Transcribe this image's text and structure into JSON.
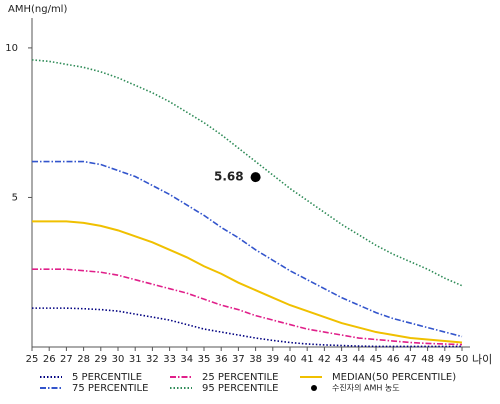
{
  "chart_data": {
    "type": "line",
    "y_label": "AMH(ng/ml)",
    "x_label": "나이",
    "x": [
      25,
      26,
      27,
      28,
      29,
      30,
      31,
      32,
      33,
      34,
      35,
      36,
      37,
      38,
      39,
      40,
      41,
      42,
      43,
      44,
      45,
      46,
      47,
      48,
      49,
      50
    ],
    "xlim": [
      25,
      50
    ],
    "xticks": [
      25,
      26,
      27,
      28,
      29,
      30,
      31,
      32,
      33,
      34,
      35,
      36,
      37,
      38,
      39,
      40,
      41,
      42,
      43,
      44,
      45,
      46,
      47,
      48,
      49,
      50
    ],
    "ylim": [
      0,
      11
    ],
    "yticks": [
      5,
      10
    ],
    "series": [
      {
        "name": "5 PERCENTILE",
        "color": "#000080",
        "style": "dotted",
        "values": [
          1.3,
          1.3,
          1.3,
          1.28,
          1.25,
          1.2,
          1.1,
          1.0,
          0.9,
          0.75,
          0.6,
          0.5,
          0.4,
          0.3,
          0.22,
          0.15,
          0.1,
          0.07,
          0.05,
          0.03,
          0.02,
          0.02,
          0.02,
          0.02,
          0.02,
          0.02
        ]
      },
      {
        "name": "25 PERCENTILE",
        "color": "#e0208a",
        "style": "dashdot",
        "values": [
          2.6,
          2.6,
          2.6,
          2.55,
          2.5,
          2.4,
          2.25,
          2.1,
          1.95,
          1.8,
          1.6,
          1.4,
          1.25,
          1.05,
          0.9,
          0.75,
          0.6,
          0.5,
          0.4,
          0.3,
          0.25,
          0.2,
          0.15,
          0.12,
          0.1,
          0.08
        ]
      },
      {
        "name": "MEDIAN(50 PERCENTILE)",
        "color": "#f0c000",
        "style": "solid",
        "values": [
          4.2,
          4.2,
          4.2,
          4.15,
          4.05,
          3.9,
          3.7,
          3.5,
          3.25,
          3.0,
          2.7,
          2.45,
          2.15,
          1.9,
          1.65,
          1.4,
          1.2,
          1.0,
          0.8,
          0.65,
          0.5,
          0.4,
          0.3,
          0.25,
          0.2,
          0.15
        ]
      },
      {
        "name": "75 PERCENTILE",
        "color": "#3355cc",
        "style": "dashdot",
        "values": [
          6.2,
          6.2,
          6.2,
          6.2,
          6.1,
          5.9,
          5.7,
          5.4,
          5.1,
          4.75,
          4.4,
          4.0,
          3.65,
          3.25,
          2.9,
          2.55,
          2.25,
          1.95,
          1.65,
          1.4,
          1.15,
          0.95,
          0.8,
          0.65,
          0.5,
          0.35
        ]
      },
      {
        "name": "95 PERCENTILE",
        "color": "#2e8b57",
        "style": "dotted",
        "values": [
          9.6,
          9.55,
          9.45,
          9.35,
          9.2,
          9.0,
          8.75,
          8.5,
          8.2,
          7.85,
          7.5,
          7.1,
          6.65,
          6.2,
          5.75,
          5.3,
          4.9,
          4.5,
          4.1,
          3.75,
          3.4,
          3.1,
          2.85,
          2.6,
          2.3,
          2.05
        ]
      }
    ],
    "points": [
      {
        "name": "수진자의 AMH 농도",
        "color": "#000000",
        "x": 38,
        "y": 5.68
      }
    ]
  }
}
